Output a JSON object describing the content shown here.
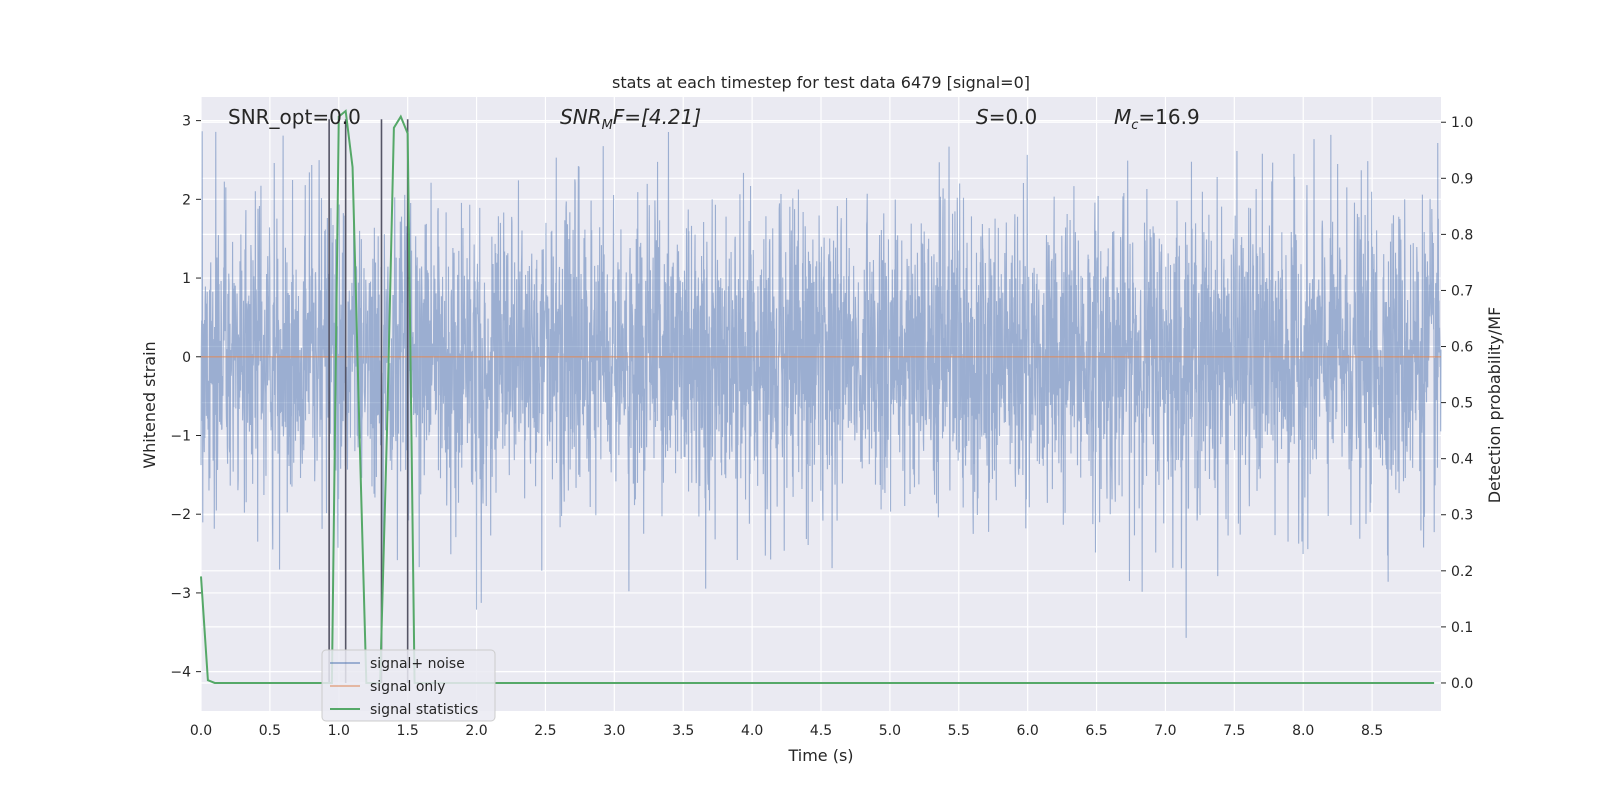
{
  "chart_data": {
    "type": "line",
    "title": "stats at each timestep for test data 6479 [signal=0]",
    "xlabel": "Time (s)",
    "ylabel": "Whitened strain",
    "ylabel_right": "Detection probability/MF",
    "xlim": [
      0.0,
      9.0
    ],
    "ylim": [
      -4.5,
      3.3
    ],
    "ylim_right": [
      -0.05,
      1.045
    ],
    "x_ticks": [
      "0.0",
      "0.5",
      "1.0",
      "1.5",
      "2.0",
      "2.5",
      "3.0",
      "3.5",
      "4.0",
      "4.5",
      "5.0",
      "5.5",
      "6.0",
      "6.5",
      "7.0",
      "7.5",
      "8.0",
      "8.5"
    ],
    "y_ticks": [
      "−4",
      "−3",
      "−2",
      "−1",
      "0",
      "1",
      "2",
      "3"
    ],
    "y_ticks_right": [
      "0.0",
      "0.1",
      "0.2",
      "0.3",
      "0.4",
      "0.5",
      "0.6",
      "0.7",
      "0.8",
      "0.9",
      "1.0"
    ],
    "grid": true,
    "legend_position": "lower-left",
    "annotations": {
      "snr_opt": "SNR_opt=0.0",
      "snr_mf_base": "SNR",
      "snr_mf_sub": "M",
      "snr_mf_rest": "F=[4.21]",
      "s_var": "S",
      "s_rest": "=0.0",
      "mc_var": "M",
      "mc_sub": "c",
      "mc_rest": "=16.9"
    },
    "markers_x": [
      0.93,
      1.05,
      1.31,
      1.5
    ],
    "series": [
      {
        "name": "signal+ noise",
        "color": "#4c72b0",
        "axis": "left",
        "description_values": "dense whitened noise between about -4 and 3"
      },
      {
        "name": "signal only",
        "color": "#dd8452",
        "axis": "left",
        "x": [
          0.0,
          9.0
        ],
        "y": [
          0.0,
          0.0
        ]
      },
      {
        "name": "signal statistics",
        "color": "#55a868",
        "axis": "right",
        "x": [
          0.0,
          0.05,
          0.1,
          0.15,
          0.9,
          0.95,
          1.0,
          1.05,
          1.1,
          1.15,
          1.2,
          1.25,
          1.3,
          1.35,
          1.4,
          1.45,
          1.5,
          1.55,
          1.6,
          1.65,
          8.95
        ],
        "y": [
          0.19,
          0.005,
          0.0,
          0.0,
          0.0,
          0.0,
          1.01,
          1.02,
          0.92,
          0.45,
          0.0,
          0.0,
          0.0,
          0.45,
          0.99,
          1.01,
          0.98,
          0.0,
          0.0,
          0.0,
          0.0
        ]
      }
    ]
  }
}
